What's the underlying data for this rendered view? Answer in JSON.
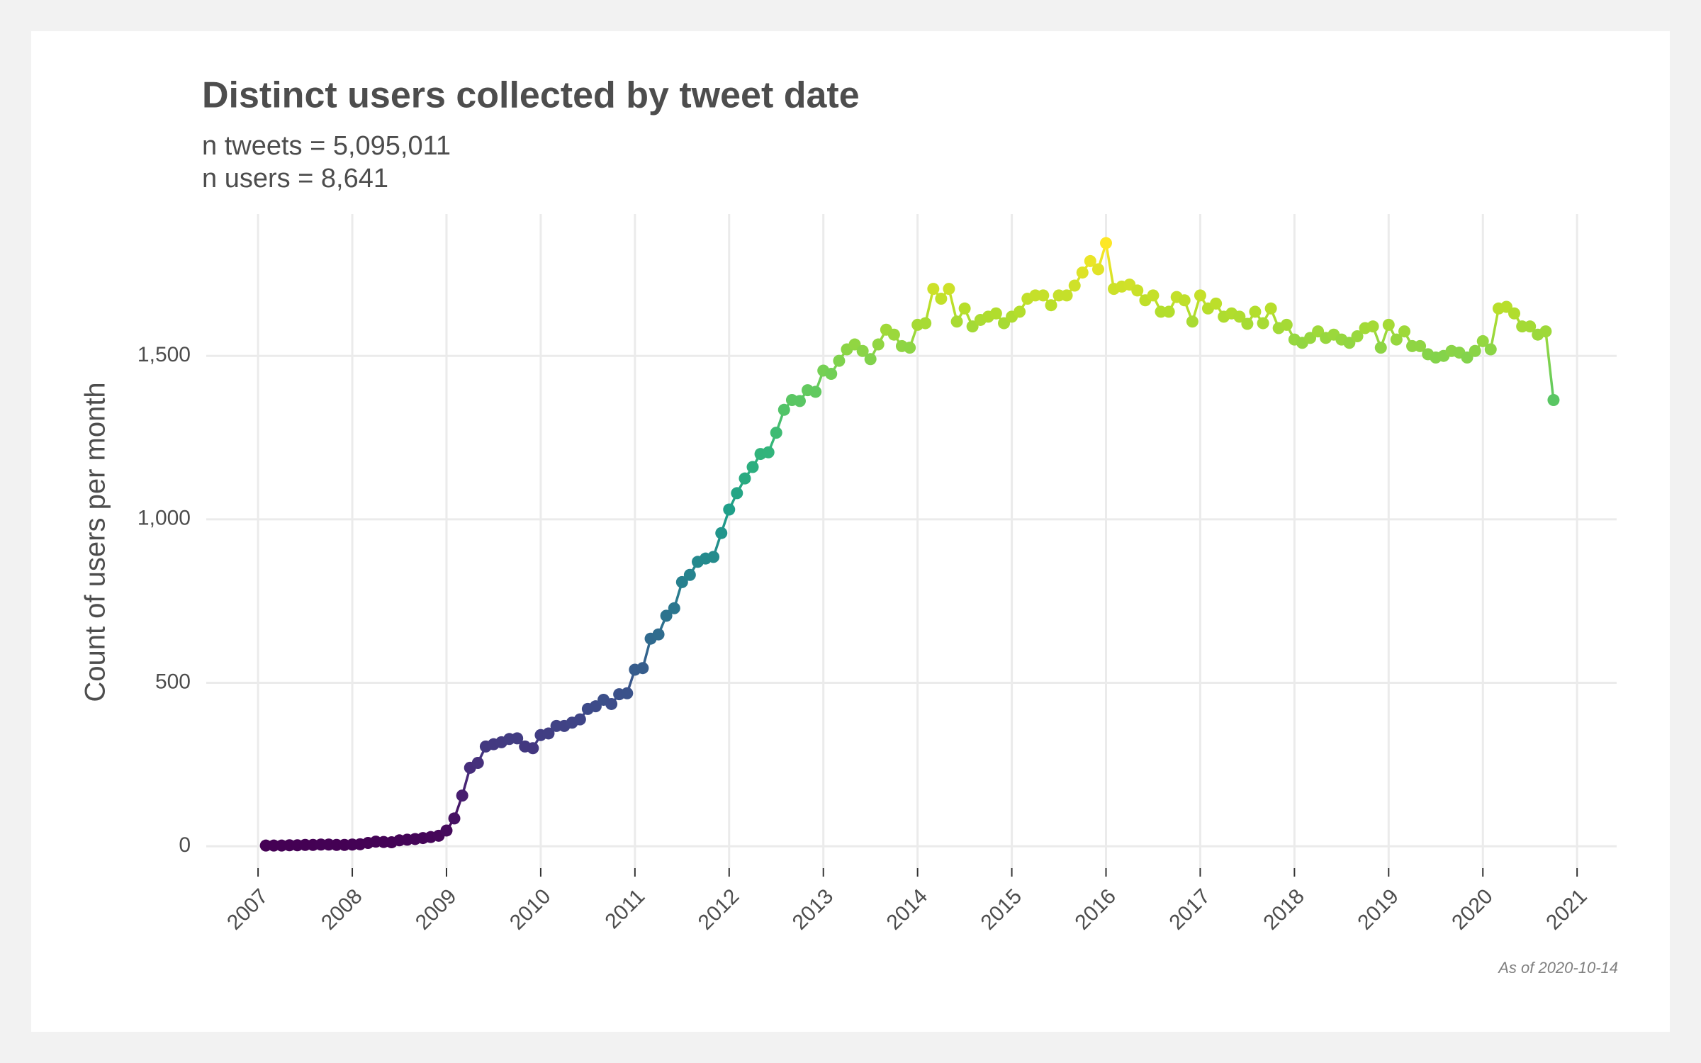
{
  "chart_data": {
    "type": "line",
    "title": "Distinct users collected by tweet date",
    "subtitle": [
      "n tweets = 5,095,011",
      "n users = 8,641"
    ],
    "y_label": "Count of users per month",
    "caption": "As of 2020-10-14",
    "colors": [
      "#440154",
      "#482878",
      "#3e4989",
      "#31688e",
      "#26828e",
      "#1f9e89",
      "#35b779",
      "#6ece58",
      "#b5de2b",
      "#fde725"
    ],
    "grid": true,
    "xlim": [
      2006.45,
      2021.42
    ],
    "xticks": [
      2007,
      2008,
      2009,
      2010,
      2011,
      2012,
      2013,
      2014,
      2015,
      2016,
      2017,
      2018,
      2019,
      2020,
      2021
    ],
    "ylim": [
      -67,
      1934
    ],
    "yticks": [
      0,
      500,
      {
        "value": 1000,
        "label": "1,000"
      },
      {
        "value": 1500,
        "label": "1,500"
      }
    ],
    "x": [
      2007.083,
      2007.167,
      2007.25,
      2007.333,
      2007.417,
      2007.5,
      2007.583,
      2007.667,
      2007.75,
      2007.833,
      2007.917,
      2008,
      2008.083,
      2008.167,
      2008.25,
      2008.333,
      2008.417,
      2008.5,
      2008.583,
      2008.667,
      2008.75,
      2008.833,
      2008.917,
      2009,
      2009.083,
      2009.167,
      2009.25,
      2009.333,
      2009.417,
      2009.5,
      2009.583,
      2009.667,
      2009.75,
      2009.833,
      2009.917,
      2010,
      2010.083,
      2010.167,
      2010.25,
      2010.333,
      2010.417,
      2010.5,
      2010.583,
      2010.667,
      2010.75,
      2010.833,
      2010.917,
      2011,
      2011.083,
      2011.167,
      2011.25,
      2011.333,
      2011.417,
      2011.5,
      2011.583,
      2011.667,
      2011.75,
      2011.833,
      2011.917,
      2012,
      2012.083,
      2012.167,
      2012.25,
      2012.333,
      2012.417,
      2012.5,
      2012.583,
      2012.667,
      2012.75,
      2012.833,
      2012.917,
      2013,
      2013.083,
      2013.167,
      2013.25,
      2013.333,
      2013.417,
      2013.5,
      2013.583,
      2013.667,
      2013.75,
      2013.833,
      2013.917,
      2014,
      2014.083,
      2014.167,
      2014.25,
      2014.333,
      2014.417,
      2014.5,
      2014.583,
      2014.667,
      2014.75,
      2014.833,
      2014.917,
      2015,
      2015.083,
      2015.167,
      2015.25,
      2015.333,
      2015.417,
      2015.5,
      2015.583,
      2015.667,
      2015.75,
      2015.833,
      2015.917,
      2016,
      2016.083,
      2016.167,
      2016.25,
      2016.333,
      2016.417,
      2016.5,
      2016.583,
      2016.667,
      2016.75,
      2016.833,
      2016.917,
      2017,
      2017.083,
      2017.167,
      2017.25,
      2017.333,
      2017.417,
      2017.5,
      2017.583,
      2017.667,
      2017.75,
      2017.833,
      2017.917,
      2018,
      2018.083,
      2018.167,
      2018.25,
      2018.333,
      2018.417,
      2018.5,
      2018.583,
      2018.667,
      2018.75,
      2018.833,
      2018.917,
      2019,
      2019.083,
      2019.167,
      2019.25,
      2019.333,
      2019.417,
      2019.5,
      2019.583,
      2019.667,
      2019.75,
      2019.833,
      2019.917,
      2020,
      2020.083,
      2020.167,
      2020.25,
      2020.333,
      2020.417,
      2020.5,
      2020.583,
      2020.667,
      2020.75
    ],
    "values": [
      2,
      2,
      2,
      3,
      3,
      4,
      4,
      5,
      5,
      4,
      4,
      5,
      6,
      10,
      14,
      13,
      12,
      18,
      20,
      22,
      25,
      28,
      32,
      48,
      85,
      155,
      240,
      255,
      305,
      312,
      318,
      328,
      330,
      305,
      300,
      340,
      345,
      368,
      368,
      378,
      388,
      420,
      428,
      448,
      435,
      465,
      468,
      540,
      545,
      635,
      648,
      705,
      728,
      808,
      830,
      870,
      880,
      885,
      958,
      1030,
      1080,
      1125,
      1160,
      1200,
      1205,
      1265,
      1335,
      1365,
      1362,
      1395,
      1390,
      1455,
      1445,
      1485,
      1520,
      1535,
      1515,
      1490,
      1535,
      1580,
      1565,
      1530,
      1525,
      1595,
      1600,
      1705,
      1675,
      1705,
      1605,
      1645,
      1590,
      1610,
      1620,
      1630,
      1600,
      1620,
      1635,
      1675,
      1685,
      1685,
      1655,
      1685,
      1685,
      1715,
      1755,
      1790,
      1765,
      1845,
      1705,
      1712,
      1718,
      1700,
      1670,
      1685,
      1635,
      1635,
      1680,
      1670,
      1605,
      1685,
      1645,
      1660,
      1620,
      1630,
      1620,
      1598,
      1635,
      1600,
      1645,
      1585,
      1595,
      1550,
      1540,
      1555,
      1575,
      1555,
      1565,
      1550,
      1540,
      1560,
      1585,
      1590,
      1525,
      1595,
      1550,
      1575,
      1530,
      1530,
      1505,
      1495,
      1500,
      1515,
      1510,
      1495,
      1515,
      1545,
      1520,
      1645,
      1650,
      1630,
      1590,
      1590,
      1565,
      1575,
      1365
    ]
  }
}
